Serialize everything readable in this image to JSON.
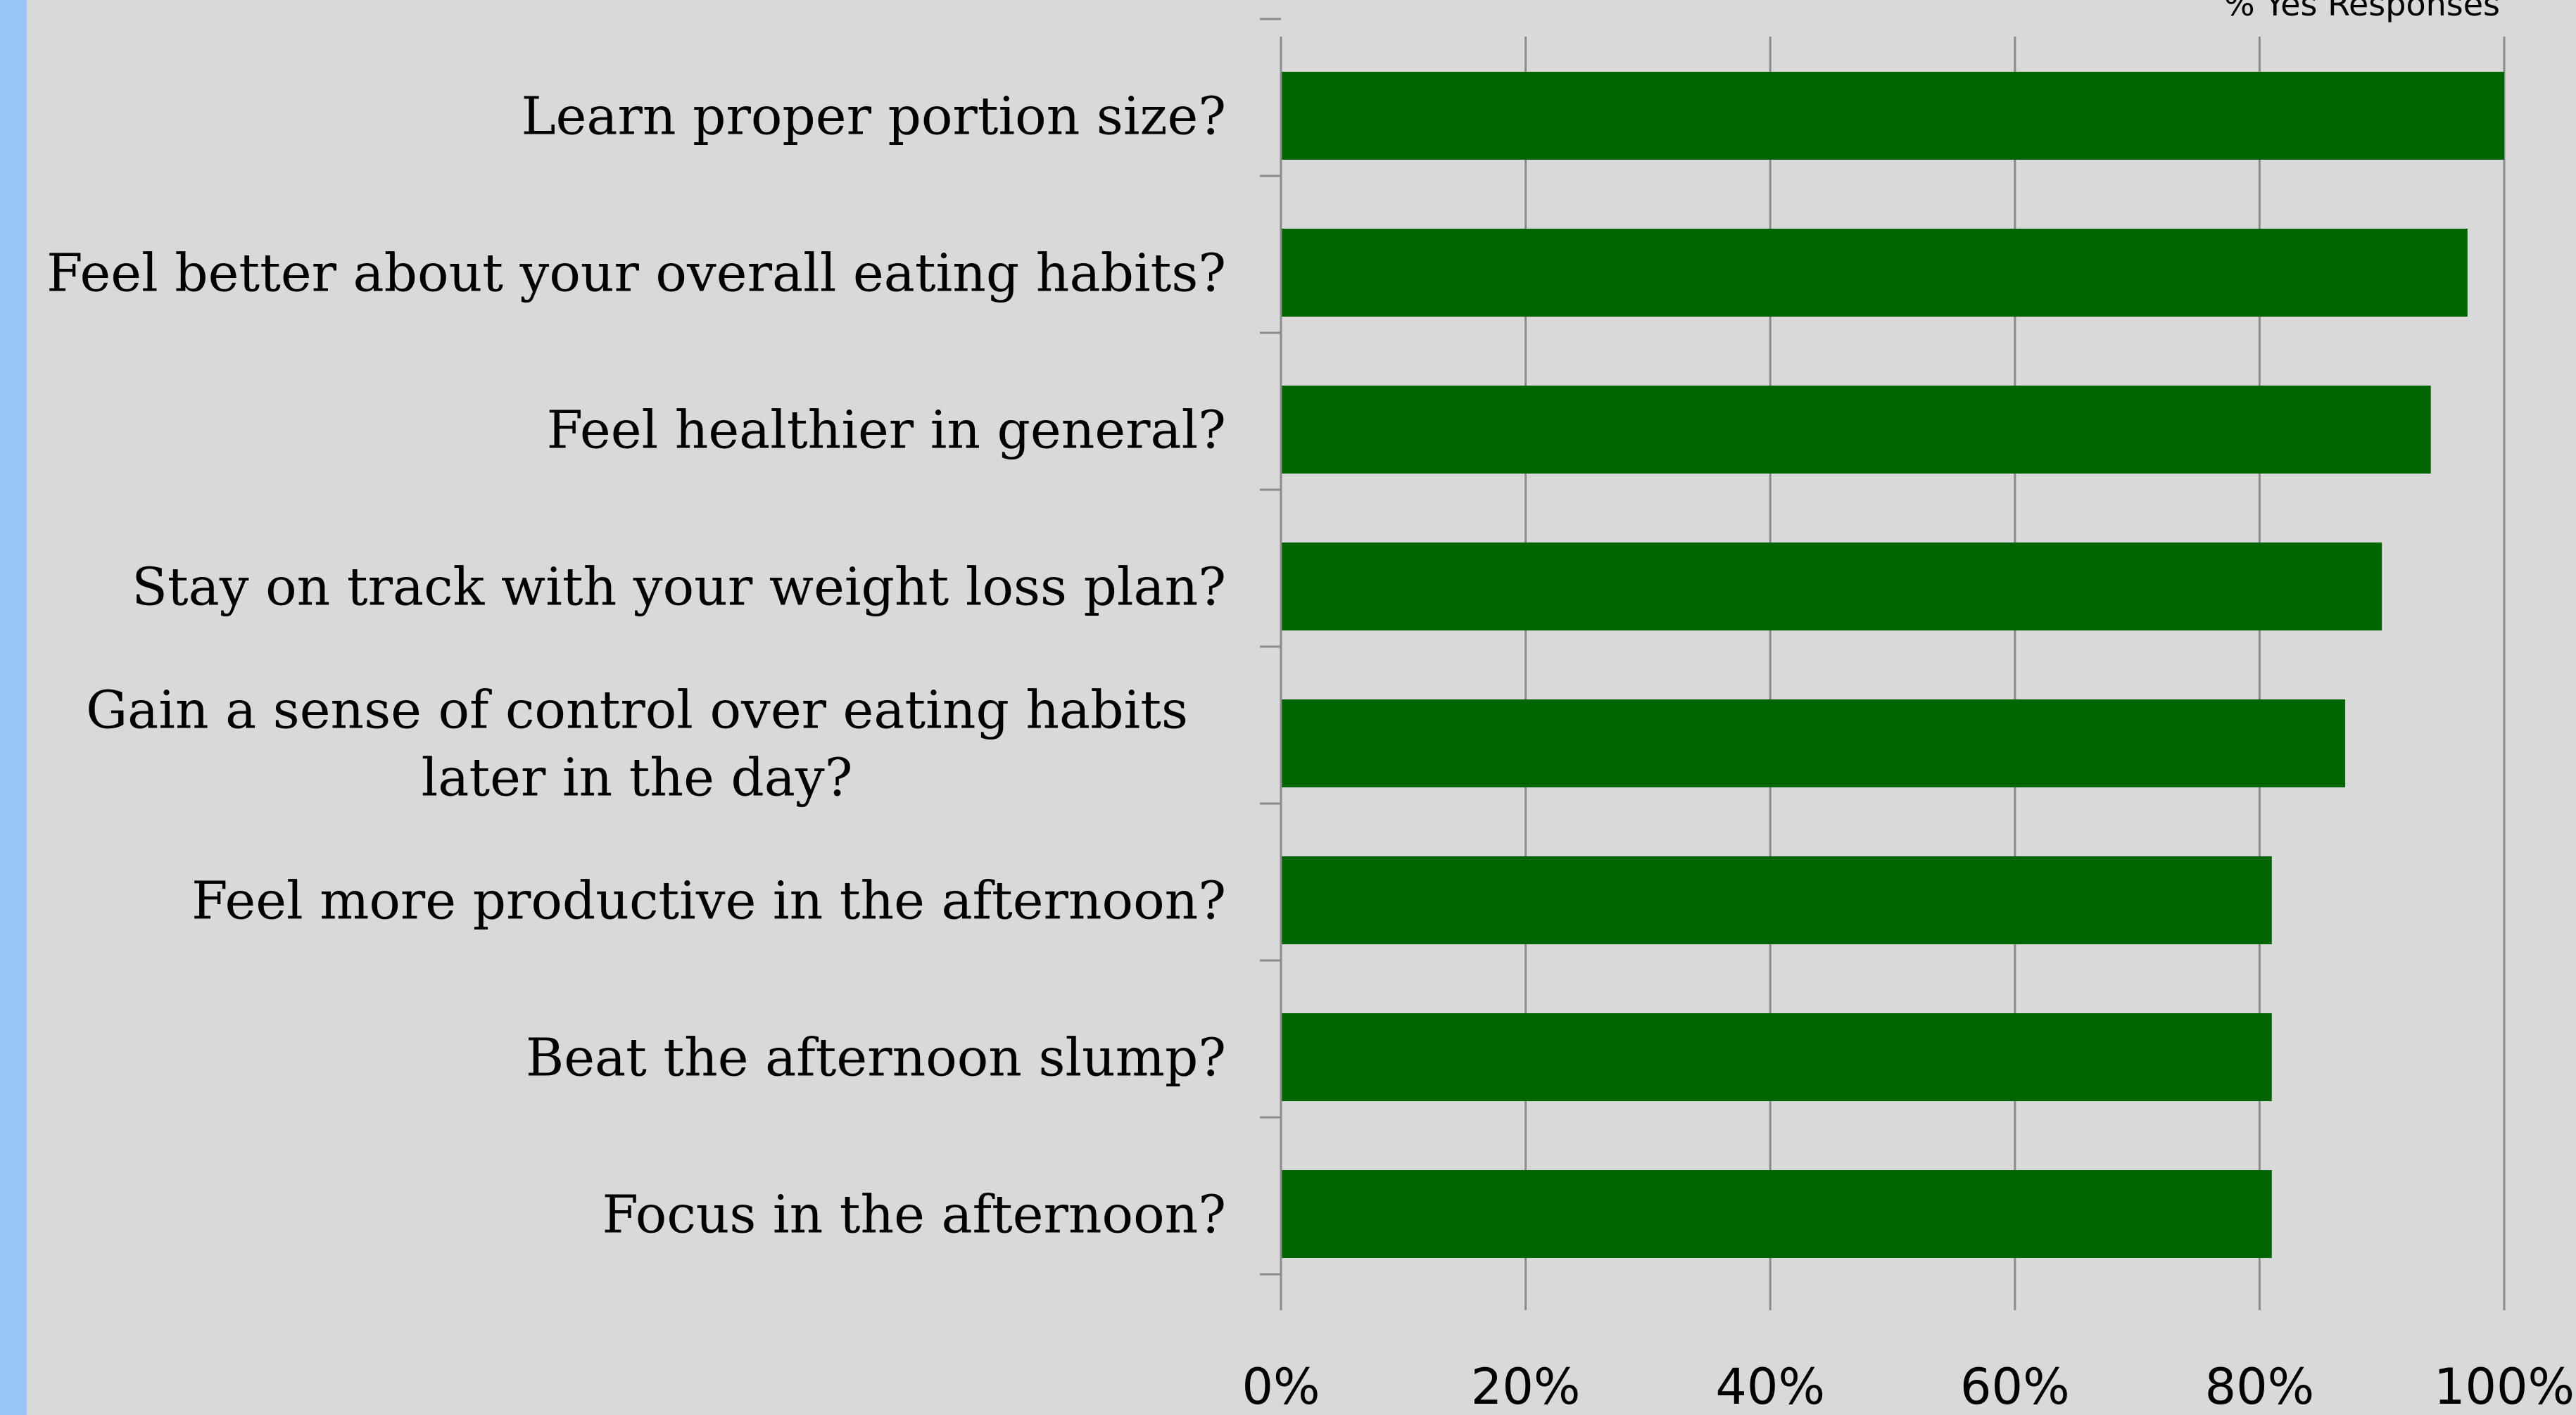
{
  "chart_data": {
    "type": "bar",
    "orientation": "horizontal",
    "categories": [
      "Learn proper portion size?",
      "Feel better about your overall eating habits?",
      "Feel healthier in general?",
      "Stay on track with your weight loss plan?",
      "Gain a sense of control over eating habits later in the day?",
      "Feel more productive in the afternoon?",
      "Beat the afternoon slump?",
      "Focus in the afternoon?"
    ],
    "series": [
      {
        "name": "% Yes Responses",
        "values": [
          100,
          97,
          94,
          90,
          87,
          81,
          81,
          81
        ],
        "color": "#006400"
      }
    ],
    "xlim": [
      0,
      100
    ],
    "x_ticks": [
      "0%",
      "20%",
      "40%",
      "60%",
      "80%",
      "100%"
    ],
    "grid": "vertical",
    "legend": "top-right"
  },
  "colors": {
    "background": "#d9d9d9",
    "bar": "#006400",
    "grid": "#8c8c8c",
    "left_stripe": "#99c4f6"
  }
}
